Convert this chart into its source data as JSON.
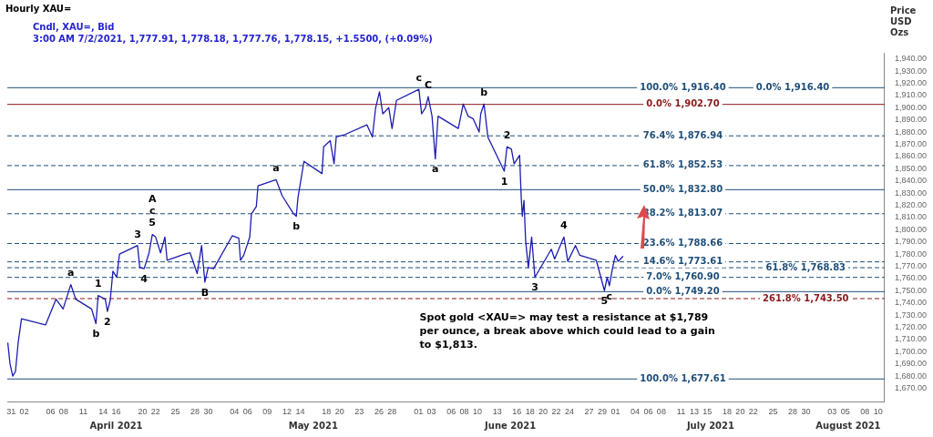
{
  "chart_data": {
    "type": "line",
    "title": "Hourly XAU=",
    "subtitle": "Cndl, XAU=, Bid",
    "ylabel": "Price USD Ozs",
    "marker": "none",
    "xlim": [
      "2021-03-30T10:00",
      "2021-08-11"
    ],
    "ylim": [
      1659,
      1945
    ],
    "xticks": [
      {
        "value": "2021-03-31",
        "label": "31"
      },
      {
        "value": "2021-04-02",
        "label": "02"
      },
      {
        "value": "2021-04-06",
        "label": "06"
      },
      {
        "value": "2021-04-08",
        "label": "08"
      },
      {
        "value": "2021-04-11",
        "label": "11"
      },
      {
        "value": "2021-04-14",
        "label": "14"
      },
      {
        "value": "2021-04-16",
        "label": "16"
      },
      {
        "value": "2021-04-20",
        "label": "20"
      },
      {
        "value": "2021-04-22",
        "label": "22"
      },
      {
        "value": "2021-04-25",
        "label": "25"
      },
      {
        "value": "2021-04-28",
        "label": "28"
      },
      {
        "value": "2021-04-30",
        "label": "30"
      },
      {
        "value": "2021-05-04",
        "label": "04"
      },
      {
        "value": "2021-05-06",
        "label": "06"
      },
      {
        "value": "2021-05-09",
        "label": "09"
      },
      {
        "value": "2021-05-12",
        "label": "12"
      },
      {
        "value": "2021-05-14",
        "label": "14"
      },
      {
        "value": "2021-05-18",
        "label": "18"
      },
      {
        "value": "2021-05-20",
        "label": "20"
      },
      {
        "value": "2021-05-23",
        "label": "23"
      },
      {
        "value": "2021-05-26",
        "label": "26"
      },
      {
        "value": "2021-05-28",
        "label": "28"
      },
      {
        "value": "2021-06-01",
        "label": "01"
      },
      {
        "value": "2021-06-03",
        "label": "03"
      },
      {
        "value": "2021-06-06",
        "label": "06"
      },
      {
        "value": "2021-06-08",
        "label": "08"
      },
      {
        "value": "2021-06-10",
        "label": "10"
      },
      {
        "value": "2021-06-13",
        "label": "13"
      },
      {
        "value": "2021-06-16",
        "label": "16"
      },
      {
        "value": "2021-06-18",
        "label": "18"
      },
      {
        "value": "2021-06-20",
        "label": "20"
      },
      {
        "value": "2021-06-22",
        "label": "22"
      },
      {
        "value": "2021-06-24",
        "label": "24"
      },
      {
        "value": "2021-06-27",
        "label": "27"
      },
      {
        "value": "2021-06-29",
        "label": "29"
      },
      {
        "value": "2021-07-01",
        "label": "01"
      },
      {
        "value": "2021-07-04",
        "label": "04"
      },
      {
        "value": "2021-07-06",
        "label": "06"
      },
      {
        "value": "2021-07-08",
        "label": "08"
      },
      {
        "value": "2021-07-11",
        "label": "11"
      },
      {
        "value": "2021-07-13",
        "label": "13"
      },
      {
        "value": "2021-07-15",
        "label": "15"
      },
      {
        "value": "2021-07-18",
        "label": "18"
      },
      {
        "value": "2021-07-20",
        "label": "20"
      },
      {
        "value": "2021-07-22",
        "label": "22"
      },
      {
        "value": "2021-07-25",
        "label": "25"
      },
      {
        "value": "2021-07-28",
        "label": "28"
      },
      {
        "value": "2021-07-30",
        "label": "30"
      },
      {
        "value": "2021-08-03",
        "label": "03"
      },
      {
        "value": "2021-08-05",
        "label": "05"
      },
      {
        "value": "2021-08-08",
        "label": "08"
      },
      {
        "value": "2021-08-10",
        "label": "10"
      }
    ],
    "yticks": [
      {
        "value": 1670,
        "label": "1,670.00"
      },
      {
        "value": 1680,
        "label": "1,680.00"
      },
      {
        "value": 1690,
        "label": "1,690.00"
      },
      {
        "value": 1700,
        "label": "1,700.00"
      },
      {
        "value": 1710,
        "label": "1,710.00"
      },
      {
        "value": 1720,
        "label": "1,720.00"
      },
      {
        "value": 1730,
        "label": "1,730.00"
      },
      {
        "value": 1740,
        "label": "1,740.00"
      },
      {
        "value": 1750,
        "label": "1,750.00"
      },
      {
        "value": 1760,
        "label": "1,760.00"
      },
      {
        "value": 1770,
        "label": "1,770.00"
      },
      {
        "value": 1780,
        "label": "1,780.00"
      },
      {
        "value": 1790,
        "label": "1,790.00"
      },
      {
        "value": 1800,
        "label": "1,800.00"
      },
      {
        "value": 1810,
        "label": "1,810.00"
      },
      {
        "value": 1820,
        "label": "1,820.00"
      },
      {
        "value": 1830,
        "label": "1,830.00"
      },
      {
        "value": 1840,
        "label": "1,840.00"
      },
      {
        "value": 1850,
        "label": "1,850.00"
      },
      {
        "value": 1860,
        "label": "1,860.00"
      },
      {
        "value": 1870,
        "label": "1,870.00"
      },
      {
        "value": 1880,
        "label": "1,880.00"
      },
      {
        "value": 1890,
        "label": "1,890.00"
      },
      {
        "value": 1900,
        "label": "1,900.00"
      },
      {
        "value": 1910,
        "label": "1,910.00"
      },
      {
        "value": 1920,
        "label": "1,920.00"
      },
      {
        "value": 1930,
        "label": "1,930.00"
      },
      {
        "value": 1940,
        "label": "1,940.00"
      }
    ],
    "series": [
      {
        "color": "#1c1cb0",
        "x": [
          "2021-03-30T12:00",
          "2021-03-30T20:00",
          "2021-03-31T06:00",
          "2021-03-31T16:00",
          "2021-04-01T02:00",
          "2021-04-01T14:00",
          "2021-04-05T06:00",
          "2021-04-06T20:00",
          "2021-04-07T22:00",
          "2021-04-09T02:00",
          "2021-04-09T20:00",
          "2021-04-12T06:00",
          "2021-04-12T22:00",
          "2021-04-13T06:00",
          "2021-04-14T08:00",
          "2021-04-14T16:00",
          "2021-04-15T02:00",
          "2021-04-15T12:00",
          "2021-04-16T02:00",
          "2021-04-16T12:00",
          "2021-04-19T06:00",
          "2021-04-19T14:00",
          "2021-04-20T06:00",
          "2021-04-21T00:00",
          "2021-04-21T12:00",
          "2021-04-22T00:00",
          "2021-04-22T18:00",
          "2021-04-23T10:00",
          "2021-04-23T18:00",
          "2021-04-26T10:00",
          "2021-04-27T06:00",
          "2021-04-28T08:00",
          "2021-04-29T00:00",
          "2021-04-29T12:00",
          "2021-04-30T00:00",
          "2021-04-30T20:00",
          "2021-05-03T16:00",
          "2021-05-04T16:00",
          "2021-05-04T22:00",
          "2021-05-05T10:00",
          "2021-05-06T08:00",
          "2021-05-06T14:00",
          "2021-05-07T08:00",
          "2021-05-07T14:00",
          "2021-05-10T08:00",
          "2021-05-11T06:00",
          "2021-05-13T00:00",
          "2021-05-13T10:00",
          "2021-05-13T16:00",
          "2021-05-14T14:00",
          "2021-05-17T08:00",
          "2021-05-17T14:00",
          "2021-05-18T14:00",
          "2021-05-19T04:00",
          "2021-05-19T12:00",
          "2021-05-20T20:00",
          "2021-05-24T04:00",
          "2021-05-25T00:00",
          "2021-05-25T12:00",
          "2021-05-26T02:00",
          "2021-05-26T14:00",
          "2021-05-27T12:00",
          "2021-05-28T00:00",
          "2021-05-28T16:00",
          "2021-06-01T02:00",
          "2021-06-01T12:00",
          "2021-06-02T02:00",
          "2021-06-02T12:00",
          "2021-06-03T02:00",
          "2021-06-03T14:00",
          "2021-06-04T00:00",
          "2021-06-07T02:00",
          "2021-06-07T20:00",
          "2021-06-08T14:00",
          "2021-06-09T08:00",
          "2021-06-10T06:00",
          "2021-06-10T12:00",
          "2021-06-11T00:00",
          "2021-06-11T14:00",
          "2021-06-14T02:00",
          "2021-06-14T12:00",
          "2021-06-15T04:00",
          "2021-06-15T14:00",
          "2021-06-16T10:00",
          "2021-06-16T16:00",
          "2021-06-16T20:00",
          "2021-06-17T02:00",
          "2021-06-17T08:00",
          "2021-06-17T18:00",
          "2021-06-18T06:00",
          "2021-06-18T18:00",
          "2021-06-21T06:00",
          "2021-06-21T18:00",
          "2021-06-23T04:00",
          "2021-06-23T18:00",
          "2021-06-24T22:00",
          "2021-06-25T14:00",
          "2021-06-28T02:00",
          "2021-06-29T08:00",
          "2021-06-29T18:00",
          "2021-06-30T02:00",
          "2021-06-30T14:00",
          "2021-07-01T00:00",
          "2021-07-01T10:00",
          "2021-07-02T03:00"
        ],
        "values": [
          1707,
          1690,
          1680,
          1684,
          1708,
          1727,
          1722,
          1743,
          1735,
          1755,
          1743,
          1735,
          1723,
          1746,
          1743,
          1733,
          1742,
          1766,
          1761,
          1780,
          1787,
          1769,
          1768,
          1781,
          1796,
          1794,
          1781,
          1794,
          1775,
          1780,
          1781,
          1764,
          1787,
          1757,
          1769,
          1768,
          1795,
          1793,
          1775,
          1779,
          1794,
          1813,
          1819,
          1836,
          1841,
          1828,
          1813,
          1811,
          1826,
          1856,
          1846,
          1868,
          1873,
          1854,
          1876,
          1878,
          1886,
          1876,
          1900,
          1913,
          1895,
          1900,
          1883,
          1906,
          1915,
          1895,
          1900,
          1909,
          1893,
          1858,
          1893,
          1883,
          1903,
          1893,
          1891,
          1880,
          1895,
          1903,
          1876,
          1848,
          1868,
          1866,
          1854,
          1861,
          1826,
          1811,
          1824,
          1791,
          1769,
          1794,
          1761,
          1784,
          1776,
          1794,
          1774,
          1787,
          1779,
          1775,
          1750,
          1761,
          1754,
          1769,
          1779,
          1774,
          1778
        ]
      }
    ],
    "ref_lines": [
      {
        "axis": "y",
        "value": 1916.4,
        "label": "100.0% 1,916.40",
        "color": "#1f4e79",
        "line_style": "solid"
      },
      {
        "axis": "y",
        "value": 1902.7,
        "label": "0.0% 1,902.70",
        "color": "#8b1a1a",
        "line_style": "solid"
      },
      {
        "axis": "y",
        "value": 1876.94,
        "label": "76.4% 1,876.94",
        "color": "#1f4e79",
        "line_style": "dashed"
      },
      {
        "axis": "y",
        "value": 1852.53,
        "label": "61.8% 1,852.53",
        "color": "#1f4e79",
        "line_style": "dashed"
      },
      {
        "axis": "y",
        "value": 1832.8,
        "label": "50.0% 1,832.80",
        "color": "#1f4e79",
        "line_style": "solid"
      },
      {
        "axis": "y",
        "value": 1813.07,
        "label": "38.2% 1,813.07",
        "color": "#1f4e79",
        "line_style": "dashed"
      },
      {
        "axis": "y",
        "value": 1788.66,
        "label": "23.6% 1,788.66",
        "color": "#1f4e79",
        "line_style": "dashed"
      },
      {
        "axis": "y",
        "value": 1773.61,
        "label": "14.6% 1,773.61",
        "color": "#1f4e79",
        "line_style": "dashed"
      },
      {
        "axis": "y",
        "value": 1768.83,
        "label": "61.8% 1,768.83",
        "color": "#1f4e79",
        "line_style": "dashed"
      },
      {
        "axis": "y",
        "value": 1760.9,
        "label": "7.0% 1,760.90",
        "color": "#1f4e79",
        "line_style": "dashed"
      },
      {
        "axis": "y",
        "value": 1749.2,
        "label": "0.0% 1,749.20",
        "color": "#1f4e79",
        "line_style": "solid"
      },
      {
        "axis": "y",
        "value": 1743.5,
        "label": "261.8% 1,743.50",
        "color": "#8b1a1a",
        "line_style": "dashed"
      },
      {
        "axis": "y",
        "value": 1677.61,
        "label": "100.0% 1,677.61",
        "color": "#1f4e79",
        "line_style": "solid"
      }
    ],
    "annotations": [
      "3:00 AM 7/2/2021, 1,777.91, 1,778.18, 1,777.76, 1,778.15, +1.5500, (+0.09%)",
      "Spot gold <XAU=> may test a resistance at $1,789 per ounce, a break above which could lead to a gain to $1,813.",
      "April 2021",
      "May 2021",
      "June 2021",
      "July 2021",
      "August 2021",
      {
        "text": "0.0% 1,916.40",
        "x": "2021-07-28",
        "y": 1916.4
      },
      {
        "text": "a",
        "x": "2021-04-09T02:00",
        "y": 1755
      },
      {
        "text": "1",
        "x": "2021-04-13T06:00",
        "y": 1746
      },
      {
        "text": "b",
        "x": "2021-04-12T22:00",
        "y": 1723
      },
      {
        "text": "2",
        "x": "2021-04-14T16:00",
        "y": 1733
      },
      {
        "text": "3",
        "x": "2021-04-19T06:00",
        "y": 1787
      },
      {
        "text": "4",
        "x": "2021-04-20T06:00",
        "y": 1768
      },
      {
        "text": "5",
        "x": "2021-04-21T12:00",
        "y": 1796
      },
      {
        "text": "c",
        "x": "2021-04-21T12:00",
        "y": 1796
      },
      {
        "text": "A",
        "x": "2021-04-21T12:00",
        "y": 1796
      },
      {
        "text": "B",
        "x": "2021-04-29T12:00",
        "y": 1757
      },
      {
        "text": "a",
        "x": "2021-05-10T08:00",
        "y": 1841
      },
      {
        "text": "b",
        "x": "2021-05-13T10:00",
        "y": 1811
      },
      {
        "text": "c",
        "x": "2021-06-01T02:00",
        "y": 1915
      },
      {
        "text": "C",
        "x": "2021-06-02T12:00",
        "y": 1909
      },
      {
        "text": "a",
        "x": "2021-06-03T14:00",
        "y": 1858
      },
      {
        "text": "b",
        "x": "2021-06-11T00:00",
        "y": 1903
      },
      {
        "text": "2",
        "x": "2021-06-14T12:00",
        "y": 1868
      },
      {
        "text": "1",
        "x": "2021-06-14T02:00",
        "y": 1848
      },
      {
        "text": "3",
        "x": "2021-06-18T18:00",
        "y": 1761
      },
      {
        "text": "4",
        "x": "2021-06-23T04:00",
        "y": 1794
      },
      {
        "text": "5",
        "x": "2021-06-29T08:00",
        "y": 1750
      },
      {
        "text": "c",
        "x": "2021-06-30T02:00",
        "y": 1754
      }
    ]
  }
}
